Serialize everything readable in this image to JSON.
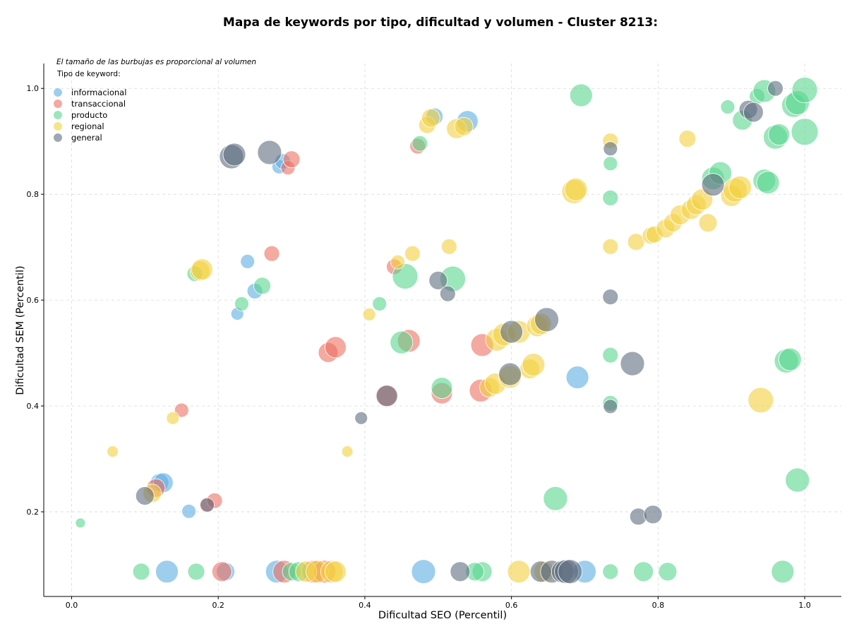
{
  "chart_data": {
    "type": "scatter",
    "title": "Mapa de keywords por tipo, dificultad y volumen - Cluster 8213:",
    "xlabel": "Dificultad SEO (Percentil)",
    "ylabel": "Dificultad SEM (Percentil)",
    "xlim": [
      -0.038,
      1.05
    ],
    "ylim": [
      0.04,
      1.047
    ],
    "xticks": [
      0.0,
      0.2,
      0.4,
      0.6,
      0.8,
      1.0
    ],
    "yticks": [
      0.2,
      0.4,
      0.6,
      0.8,
      1.0
    ],
    "xtick_labels": [
      "0.0",
      "0.2",
      "0.4",
      "0.6",
      "0.8",
      "1.0"
    ],
    "ytick_labels": [
      "0.2",
      "0.4",
      "0.6",
      "0.8",
      "1.0"
    ],
    "grid": true,
    "annotation": "El tamaño de las burbujas es proporcional al volumen",
    "legend_title": "Tipo de keyword:",
    "legend_position": "top-left",
    "series": [
      {
        "name": "informacional",
        "color": "#5dade2",
        "points": [
          [
            0.13,
            0.087,
            16
          ],
          [
            0.16,
            0.201,
            10
          ],
          [
            0.12,
            0.255,
            13
          ],
          [
            0.125,
            0.255,
            14
          ],
          [
            0.21,
            0.087,
            13
          ],
          [
            0.226,
            0.574,
            9
          ],
          [
            0.24,
            0.673,
            10
          ],
          [
            0.25,
            0.617,
            11
          ],
          [
            0.28,
            0.087,
            16
          ],
          [
            0.283,
            0.852,
            10
          ],
          [
            0.288,
            0.862,
            11
          ],
          [
            0.48,
            0.087,
            17
          ],
          [
            0.495,
            0.947,
            12
          ],
          [
            0.54,
            0.938,
            15
          ],
          [
            0.69,
            0.454,
            16
          ],
          [
            0.7,
            0.087,
            16
          ]
        ]
      },
      {
        "name": "transaccional",
        "color": "#ec7063",
        "points": [
          [
            0.15,
            0.392,
            10
          ],
          [
            0.115,
            0.245,
            13
          ],
          [
            0.185,
            0.213,
            11
          ],
          [
            0.195,
            0.221,
            11
          ],
          [
            0.205,
            0.087,
            14
          ],
          [
            0.273,
            0.688,
            11
          ],
          [
            0.29,
            0.087,
            16
          ],
          [
            0.295,
            0.85,
            10
          ],
          [
            0.3,
            0.866,
            12
          ],
          [
            0.33,
            0.087,
            16
          ],
          [
            0.345,
            0.087,
            16
          ],
          [
            0.35,
            0.501,
            14
          ],
          [
            0.36,
            0.511,
            15
          ],
          [
            0.43,
            0.419,
            16
          ],
          [
            0.44,
            0.663,
            11
          ],
          [
            0.46,
            0.523,
            16
          ],
          [
            0.472,
            0.891,
            11
          ],
          [
            0.505,
            0.424,
            15
          ],
          [
            0.56,
            0.515,
            16
          ],
          [
            0.558,
            0.429,
            16
          ]
        ]
      },
      {
        "name": "producto",
        "color": "#58d68d",
        "points": [
          [
            0.012,
            0.179,
            7
          ],
          [
            0.095,
            0.087,
            12
          ],
          [
            0.168,
            0.65,
            11
          ],
          [
            0.17,
            0.087,
            12
          ],
          [
            0.232,
            0.593,
            10
          ],
          [
            0.26,
            0.627,
            12
          ],
          [
            0.3,
            0.087,
            13
          ],
          [
            0.31,
            0.087,
            14
          ],
          [
            0.42,
            0.593,
            10
          ],
          [
            0.45,
            0.52,
            16
          ],
          [
            0.455,
            0.645,
            18
          ],
          [
            0.475,
            0.896,
            11
          ],
          [
            0.505,
            0.434,
            15
          ],
          [
            0.52,
            0.64,
            18
          ],
          [
            0.56,
            0.087,
            14
          ],
          [
            0.55,
            0.087,
            13
          ],
          [
            0.66,
            0.225,
            17
          ],
          [
            0.695,
            0.987,
            16
          ],
          [
            0.735,
            0.087,
            11
          ],
          [
            0.735,
            0.858,
            10
          ],
          [
            0.735,
            0.793,
            11
          ],
          [
            0.735,
            0.496,
            11
          ],
          [
            0.735,
            0.405,
            11
          ],
          [
            0.78,
            0.087,
            14
          ],
          [
            0.813,
            0.087,
            13
          ],
          [
            0.875,
            0.83,
            16
          ],
          [
            0.885,
            0.84,
            16
          ],
          [
            0.895,
            0.965,
            10
          ],
          [
            0.915,
            0.94,
            14
          ],
          [
            0.935,
            0.985,
            11
          ],
          [
            0.945,
            0.995,
            16
          ],
          [
            0.945,
            0.826,
            16
          ],
          [
            0.95,
            0.822,
            16
          ],
          [
            0.96,
            0.908,
            17
          ],
          [
            0.965,
            0.913,
            15
          ],
          [
            0.97,
            0.087,
            16
          ],
          [
            0.975,
            0.485,
            17
          ],
          [
            0.98,
            0.488,
            16
          ],
          [
            0.985,
            0.968,
            17
          ],
          [
            0.99,
            0.973,
            17
          ],
          [
            0.99,
            0.26,
            17
          ],
          [
            1.0,
            0.997,
            18
          ],
          [
            1.0,
            0.918,
            19
          ]
        ]
      },
      {
        "name": "regional",
        "color": "#f4d03f",
        "points": [
          [
            0.056,
            0.314,
            8
          ],
          [
            0.138,
            0.377,
            9
          ],
          [
            0.11,
            0.235,
            13
          ],
          [
            0.175,
            0.655,
            14
          ],
          [
            0.178,
            0.658,
            15
          ],
          [
            0.32,
            0.087,
            15
          ],
          [
            0.335,
            0.087,
            16
          ],
          [
            0.355,
            0.087,
            16
          ],
          [
            0.36,
            0.087,
            15
          ],
          [
            0.376,
            0.314,
            8
          ],
          [
            0.406,
            0.573,
            9
          ],
          [
            0.445,
            0.672,
            10
          ],
          [
            0.465,
            0.688,
            11
          ],
          [
            0.485,
            0.931,
            12
          ],
          [
            0.49,
            0.944,
            13
          ],
          [
            0.515,
            0.701,
            11
          ],
          [
            0.525,
            0.924,
            14
          ],
          [
            0.535,
            0.928,
            13
          ],
          [
            0.57,
            0.435,
            14
          ],
          [
            0.578,
            0.442,
            15
          ],
          [
            0.58,
            0.525,
            16
          ],
          [
            0.59,
            0.535,
            16
          ],
          [
            0.598,
            0.455,
            16
          ],
          [
            0.61,
            0.087,
            16
          ],
          [
            0.61,
            0.54,
            16
          ],
          [
            0.625,
            0.47,
            14
          ],
          [
            0.63,
            0.478,
            16
          ],
          [
            0.635,
            0.551,
            15
          ],
          [
            0.64,
            0.555,
            15
          ],
          [
            0.645,
            0.087,
            15
          ],
          [
            0.685,
            0.805,
            17
          ],
          [
            0.688,
            0.809,
            16
          ],
          [
            0.735,
            0.901,
            11
          ],
          [
            0.735,
            0.701,
            11
          ],
          [
            0.77,
            0.71,
            12
          ],
          [
            0.79,
            0.722,
            12
          ],
          [
            0.795,
            0.724,
            12
          ],
          [
            0.81,
            0.735,
            13
          ],
          [
            0.82,
            0.746,
            13
          ],
          [
            0.83,
            0.761,
            14
          ],
          [
            0.84,
            0.905,
            12
          ],
          [
            0.845,
            0.771,
            14
          ],
          [
            0.852,
            0.78,
            14
          ],
          [
            0.86,
            0.79,
            15
          ],
          [
            0.868,
            0.746,
            13
          ],
          [
            0.9,
            0.797,
            15
          ],
          [
            0.905,
            0.808,
            17
          ],
          [
            0.912,
            0.813,
            16
          ],
          [
            0.94,
            0.411,
            18
          ]
        ]
      },
      {
        "name": "general",
        "color": "#5d6d7e",
        "points": [
          [
            0.1,
            0.23,
            13
          ],
          [
            0.185,
            0.213,
            10
          ],
          [
            0.218,
            0.871,
            17
          ],
          [
            0.222,
            0.875,
            16
          ],
          [
            0.27,
            0.879,
            17
          ],
          [
            0.395,
            0.377,
            9
          ],
          [
            0.43,
            0.419,
            15
          ],
          [
            0.5,
            0.637,
            13
          ],
          [
            0.513,
            0.612,
            11
          ],
          [
            0.53,
            0.087,
            14
          ],
          [
            0.598,
            0.46,
            16
          ],
          [
            0.6,
            0.54,
            16
          ],
          [
            0.64,
            0.087,
            15
          ],
          [
            0.648,
            0.563,
            17
          ],
          [
            0.655,
            0.087,
            16
          ],
          [
            0.67,
            0.087,
            16
          ],
          [
            0.675,
            0.087,
            17
          ],
          [
            0.68,
            0.087,
            17
          ],
          [
            0.735,
            0.606,
            11
          ],
          [
            0.735,
            0.886,
            10
          ],
          [
            0.735,
            0.399,
            10
          ],
          [
            0.765,
            0.48,
            17
          ],
          [
            0.773,
            0.191,
            12
          ],
          [
            0.793,
            0.195,
            13
          ],
          [
            0.875,
            0.818,
            16
          ],
          [
            0.923,
            0.96,
            13
          ],
          [
            0.93,
            0.955,
            14
          ],
          [
            0.96,
            1.0,
            11
          ]
        ]
      }
    ]
  }
}
